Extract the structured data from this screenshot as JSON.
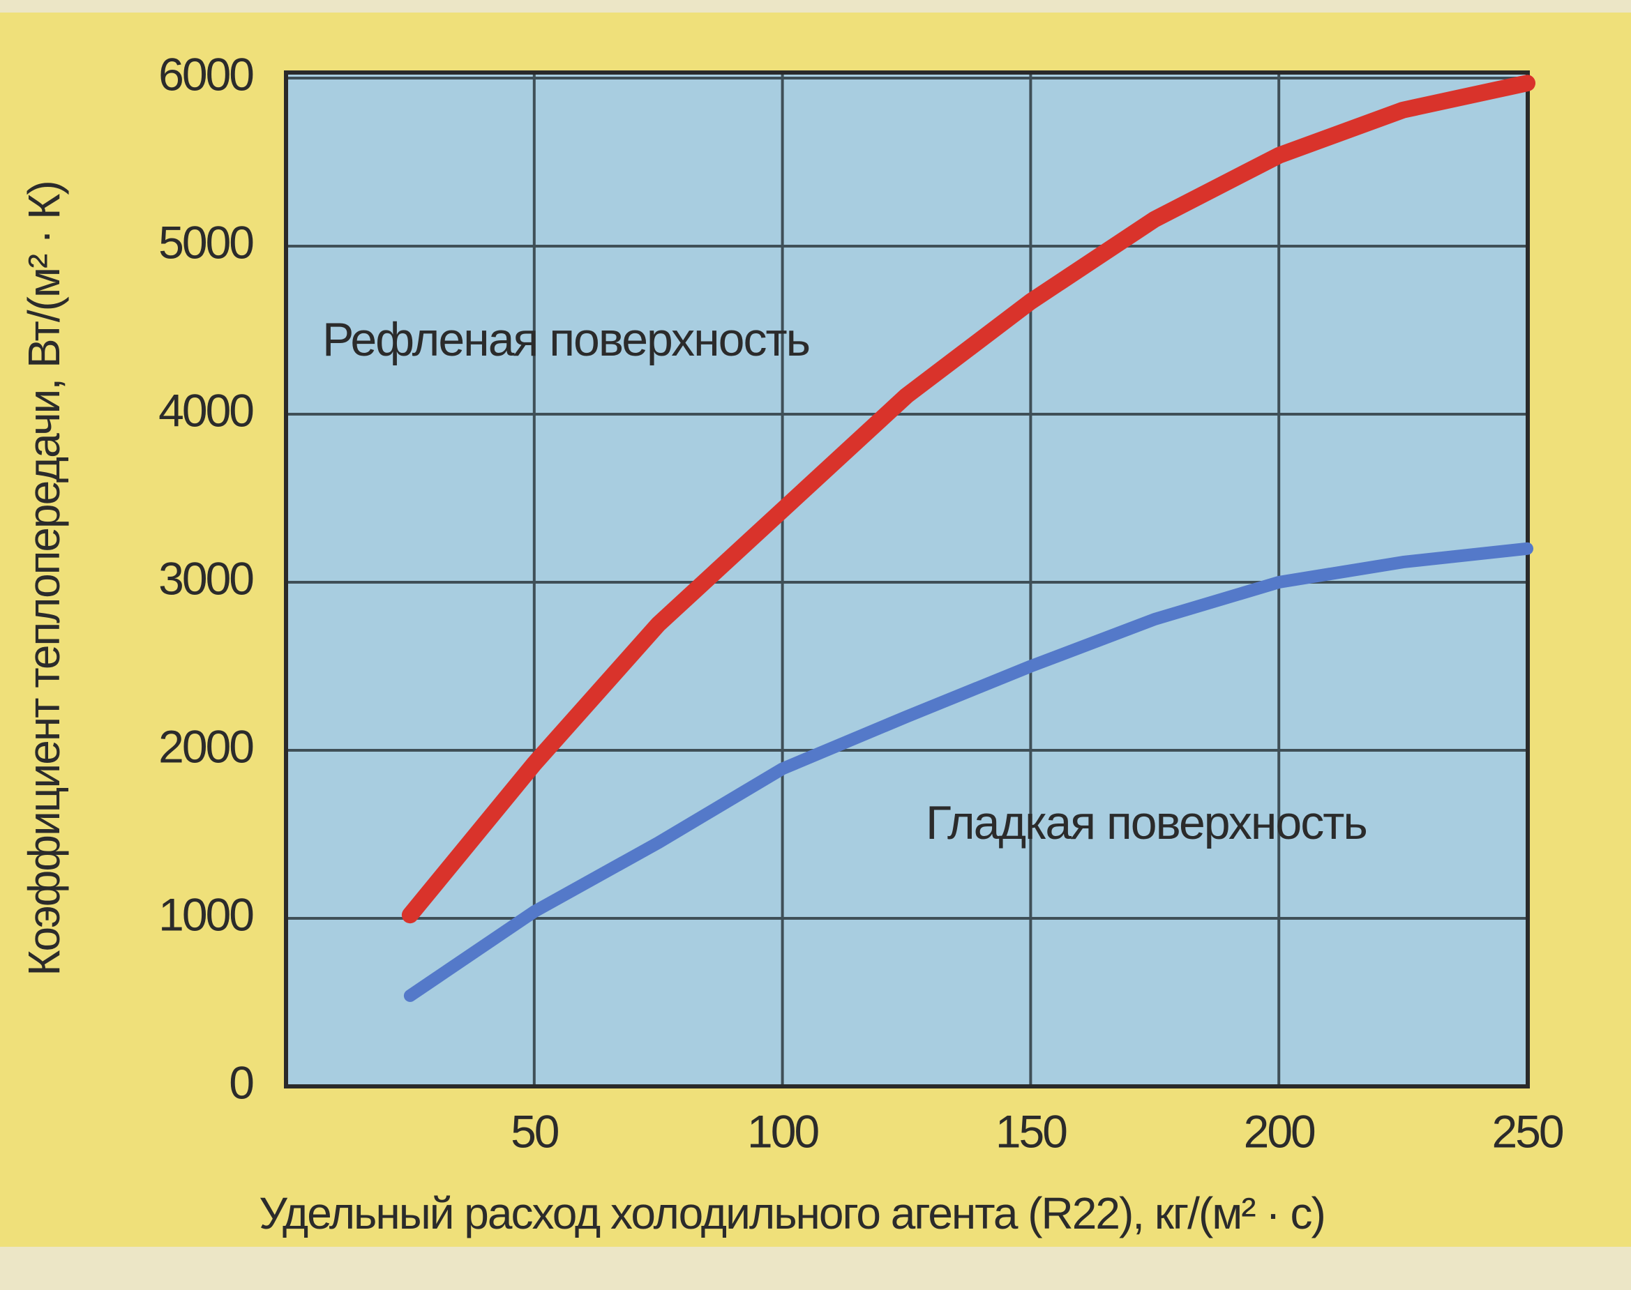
{
  "chart_data": {
    "type": "line",
    "x_label": "Удельный расход холодильного агента (R22), кг/(м² · с)",
    "y_label": "Коэффициент теплопередачи, Вт/(м² · К)",
    "x": [
      25,
      50,
      75,
      100,
      125,
      150,
      175,
      200,
      225,
      250
    ],
    "series": [
      {
        "name": "Рефленая поверхность",
        "color": "#d9332b",
        "values": [
          1020,
          1920,
          2750,
          3430,
          4110,
          4670,
          5160,
          5540,
          5810,
          5970
        ]
      },
      {
        "name": "Гладкая поверхность",
        "color": "#5479c9",
        "values": [
          540,
          1040,
          1450,
          1890,
          2200,
          2500,
          2780,
          3000,
          3120,
          3200
        ]
      }
    ],
    "xlim": [
      0,
      250
    ],
    "xticks": [
      50,
      100,
      150,
      200,
      250
    ],
    "ylim": [
      0,
      6000
    ],
    "yticks": [
      0,
      1000,
      2000,
      3000,
      4000,
      5000,
      6000
    ],
    "grid": true
  }
}
